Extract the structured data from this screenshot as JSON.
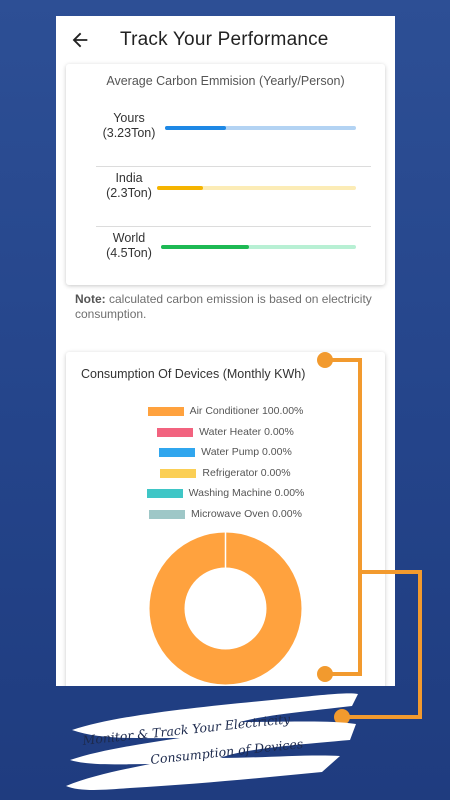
{
  "app": {
    "title": "Track Your Performance"
  },
  "emission": {
    "title": "Average Carbon Emmision (Yearly/Person)",
    "rows": [
      {
        "label": "Yours",
        "value": "(3.23Ton)",
        "fraction": 0.32,
        "fill": "#1e88e5",
        "track": "#b3d3f3"
      },
      {
        "label": "India",
        "value": "(2.3Ton)",
        "fraction": 0.23,
        "fill": "#f5b400",
        "track": "#fcecb6"
      },
      {
        "label": "World",
        "value": "(4.5Ton)",
        "fraction": 0.45,
        "fill": "#1db954",
        "track": "#b8f0d4"
      }
    ]
  },
  "note": {
    "bold": "Note:",
    "text": " calculated carbon emission is based on electricity consumption."
  },
  "consumption": {
    "title": "Consumption Of Devices (Monthly KWh)"
  },
  "chart_data": {
    "type": "pie",
    "title": "Consumption Of Devices (Monthly KWh)",
    "categories": [
      "Air Conditioner",
      "Water Heater",
      "Water Pump",
      "Refrigerator",
      "Washing Machine",
      "Microwave Oven"
    ],
    "values": [
      100,
      0,
      0,
      0,
      0,
      0
    ],
    "legend_labels": [
      "Air Conditioner 100.00%",
      "Water Heater 0.00%",
      "Water Pump 0.00%",
      "Refrigerator 0.00%",
      "Washing Machine 0.00%",
      "Microwave Oven 0.00%"
    ],
    "colors": [
      "#ffa23e",
      "#f2637f",
      "#30a6ee",
      "#fbcf55",
      "#3fc6c6",
      "#9ec7c7"
    ],
    "legend_placement": "top"
  },
  "promo": {
    "line1": "Monitor & Track Your Electricity",
    "line2": "Consumption of Devices"
  },
  "colors": {
    "background": "#2a4b90",
    "accent_orange": "#f29a2e"
  }
}
